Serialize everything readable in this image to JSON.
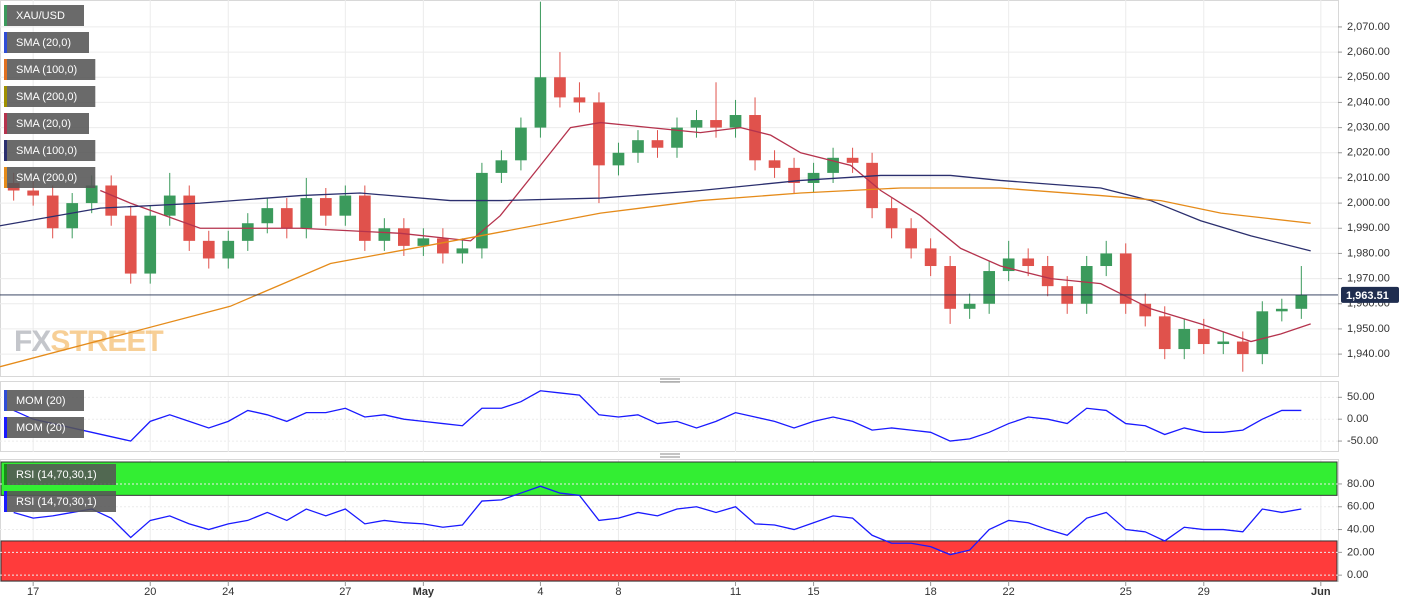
{
  "chart_data": [
    {
      "type": "candlestick",
      "title": "XAU/USD",
      "watermark": [
        "FX",
        "STREET"
      ],
      "up_color": "#3b9a5c",
      "down_color": "#e0524c",
      "xlim": [
        -0.85,
        33.44
      ],
      "xticks": [
        {
          "value": 0,
          "label": "17"
        },
        {
          "value": 3,
          "label": "20"
        },
        {
          "value": 5,
          "label": "24"
        },
        {
          "value": 8,
          "label": "27"
        },
        {
          "value": 10,
          "label": "May"
        },
        {
          "value": 13,
          "label": "4"
        },
        {
          "value": 15,
          "label": "8"
        },
        {
          "value": 18,
          "label": "11"
        },
        {
          "value": 20,
          "label": "15"
        },
        {
          "value": 23,
          "label": "18"
        },
        {
          "value": 25,
          "label": "22"
        },
        {
          "value": 28,
          "label": "25"
        },
        {
          "value": 30,
          "label": "29"
        },
        {
          "value": 33,
          "label": "Jun"
        }
      ],
      "ylim": [
        1931.3,
        2080.7
      ],
      "yticks": [
        {
          "value": 1940,
          "label": "1,940.00"
        },
        {
          "value": 1950,
          "label": "1,950.00"
        },
        {
          "value": 1960,
          "label": "1,960.00"
        },
        {
          "value": 1970,
          "label": "1,970.00"
        },
        {
          "value": 1980,
          "label": "1,980.00"
        },
        {
          "value": 1990,
          "label": "1,990.00"
        },
        {
          "value": 2000,
          "label": "2,000.00"
        },
        {
          "value": 2010,
          "label": "2,010.00"
        },
        {
          "value": 2020,
          "label": "2,020.00"
        },
        {
          "value": 2030,
          "label": "2,030.00"
        },
        {
          "value": 2040,
          "label": "2,040.00"
        },
        {
          "value": 2050,
          "label": "2,050.00"
        },
        {
          "value": 2060,
          "label": "2,060.00"
        },
        {
          "value": 2070,
          "label": "2,070.00"
        }
      ],
      "grid": true,
      "last_price": {
        "value": 1963.51,
        "label": "1,963.51",
        "color": "#1f2d4f"
      },
      "legend": [
        {
          "name": "SMA (20,0)",
          "color": "#2f4dd6"
        },
        {
          "name": "SMA (100,0)",
          "color": "#e07020"
        },
        {
          "name": "SMA (200,0)",
          "color": "#a09000"
        }
      ],
      "x": [
        -0.5,
        0,
        0.5,
        1,
        1.5,
        2,
        2.5,
        3,
        3.5,
        4,
        4.5,
        5,
        5.5,
        6,
        6.5,
        7,
        7.5,
        8,
        8.5,
        9,
        9.5,
        10,
        10.5,
        11,
        11.5,
        12,
        12.5,
        13,
        13.5,
        14,
        14.5,
        15,
        15.5,
        16,
        16.5,
        17,
        17.5,
        18,
        18.5,
        19,
        19.5,
        20,
        20.5,
        21,
        21.5,
        22,
        22.5,
        23,
        23.5,
        24,
        24.5,
        25,
        25.5,
        26,
        26.5,
        27,
        27.5,
        28,
        28.5,
        29,
        29.5,
        30,
        30.5,
        31,
        31.5,
        32,
        32.5
      ],
      "open": [
        2008,
        2005,
        2003,
        1990,
        2000,
        2007,
        1995,
        1972,
        1995,
        2003,
        1985,
        1978,
        1985,
        1992,
        1998,
        1990,
        2002,
        1995,
        2003,
        1985,
        1990,
        1983,
        1986,
        1980,
        1982,
        2012,
        2017,
        2030,
        2050,
        2042,
        2040,
        2015,
        2020,
        2025,
        2022,
        2030,
        2033,
        2030,
        2035,
        2017,
        2014,
        2008,
        2012,
        2018,
        2016,
        1998,
        1990,
        1982,
        1975,
        1958,
        1960,
        1973,
        1978,
        1975,
        1967,
        1960,
        1975,
        1980,
        1960,
        1955,
        1942,
        1950,
        1944,
        1945,
        1940,
        1957,
        1958
      ],
      "high": [
        2012,
        2009,
        2007,
        2004,
        2011,
        2011,
        1999,
        1999,
        2012,
        2007,
        1989,
        1989,
        1996,
        2002,
        2002,
        2010,
        2006,
        2007,
        2007,
        1994,
        1994,
        1990,
        1990,
        1986,
        2016,
        2021,
        2034,
        2080,
        2060,
        2048,
        2044,
        2024,
        2029,
        2029,
        2034,
        2037,
        2048,
        2041,
        2042,
        2021,
        2018,
        2016,
        2022,
        2022,
        2020,
        2002,
        1994,
        1986,
        1979,
        1964,
        1977,
        1985,
        1982,
        1979,
        1971,
        1979,
        1985,
        1984,
        1964,
        1959,
        1954,
        1954,
        1949,
        1949,
        1961,
        1962,
        1975
      ],
      "low": [
        2001,
        1999,
        1986,
        1986,
        1996,
        1991,
        1968,
        1968,
        1991,
        1981,
        1974,
        1974,
        1981,
        1988,
        1986,
        1986,
        1991,
        1991,
        1981,
        1981,
        1979,
        1979,
        1976,
        1976,
        1978,
        2008,
        2013,
        2026,
        2038,
        2036,
        2000,
        2011,
        2016,
        2018,
        2018,
        2026,
        2026,
        2026,
        2013,
        2010,
        2004,
        2004,
        2008,
        2012,
        1994,
        1986,
        1978,
        1971,
        1952,
        1954,
        1956,
        1969,
        1971,
        1963,
        1956,
        1956,
        1971,
        1956,
        1951,
        1938,
        1938,
        1940,
        1940,
        1933,
        1936,
        1953,
        1954
      ],
      "close": [
        2005,
        2003,
        1990,
        2000,
        2007,
        1995,
        1972,
        1995,
        2003,
        1985,
        1978,
        1985,
        1992,
        1998,
        1990,
        2002,
        1995,
        2003,
        1985,
        1990,
        1983,
        1986,
        1980,
        1982,
        2012,
        2017,
        2030,
        2050,
        2042,
        2040,
        2015,
        2020,
        2025,
        2022,
        2030,
        2033,
        2030,
        2035,
        2017,
        2014,
        2008,
        2012,
        2018,
        2016,
        1998,
        1990,
        1982,
        1975,
        1958,
        1960,
        1973,
        1978,
        1975,
        1967,
        1960,
        1975,
        1980,
        1960,
        1955,
        1942,
        1950,
        1944,
        1945,
        1940,
        1957,
        1958,
        1963.51
      ],
      "series": [
        {
          "name": "SMA (20,0)",
          "color": "#b5334d",
          "x": [
            1.72,
            2.49,
            4.28,
            6.85,
            9.41,
            11.21,
            11.97,
            13.0,
            13.77,
            14.54,
            15.82,
            17.1,
            18.13,
            18.9,
            19.67,
            20.95,
            21.72,
            22.74,
            23.77,
            24.79,
            26.08,
            27.36,
            28.64,
            29.92,
            31.21,
            31.97,
            32.74
          ],
          "values": [
            2005,
            2000,
            1990,
            1990,
            1988,
            1985,
            1995,
            2015,
            2030,
            2032,
            2030,
            2028,
            2030,
            2027,
            2020,
            2015,
            2005,
            1995,
            1982,
            1975,
            1970,
            1968,
            1958,
            1952,
            1945,
            1948,
            1952
          ]
        },
        {
          "name": "SMA (100,0)",
          "color": "#2b2f6e",
          "x": [
            -0.85,
            1.72,
            4.28,
            6.85,
            8.38,
            10.69,
            11.97,
            14.54,
            17.1,
            19.67,
            21.72,
            23.51,
            24.79,
            27.36,
            28.64,
            29.92,
            31.21,
            32.74
          ],
          "values": [
            1991,
            1998,
            2000,
            2003,
            2004,
            2001,
            2001,
            2002,
            2005,
            2009,
            2011,
            2011,
            2009,
            2006,
            2001,
            1993,
            1987,
            1981
          ]
        },
        {
          "name": "SMA (200,0)",
          "color": "#e58b1a",
          "x": [
            -0.85,
            5.05,
            7.62,
            11.46,
            14.54,
            17.1,
            19.67,
            22.23,
            24.79,
            27.36,
            28.9,
            30.44,
            32.74
          ],
          "values": [
            1935,
            1959,
            1976,
            1987,
            1996,
            2001,
            2004,
            2006,
            2006,
            2003,
            2001,
            1996,
            1992
          ]
        }
      ]
    },
    {
      "type": "line",
      "ylim": [
        -75,
        85
      ],
      "yticks": [
        {
          "value": 50,
          "label": "50.00"
        },
        {
          "value": 0,
          "label": "0.00"
        },
        {
          "value": -50,
          "label": "-50.00"
        }
      ],
      "legend": [
        {
          "name": "MOM (20)",
          "color": "#2f4dd6"
        }
      ],
      "series": [
        {
          "name": "MOM (20)",
          "color": "#1a1aff",
          "values": [
            20,
            0,
            -10,
            -20,
            -30,
            -40,
            -50,
            -5,
            10,
            -5,
            -20,
            -5,
            20,
            10,
            -5,
            15,
            15,
            25,
            5,
            10,
            0,
            -5,
            -10,
            -15,
            25,
            25,
            40,
            65,
            60,
            55,
            10,
            5,
            10,
            -10,
            -5,
            -20,
            -5,
            15,
            5,
            -5,
            -20,
            -5,
            5,
            -5,
            -25,
            -20,
            -25,
            -30,
            -50,
            -45,
            -30,
            -10,
            5,
            0,
            -10,
            25,
            20,
            -10,
            -15,
            -35,
            -20,
            -30,
            -30,
            -25,
            0,
            20,
            20
          ]
        }
      ]
    },
    {
      "type": "line",
      "ylim": [
        -6,
        101
      ],
      "yticks": [
        {
          "value": 0,
          "label": "0.00"
        },
        {
          "value": 20,
          "label": "20.00"
        },
        {
          "value": 40,
          "label": "40.00"
        },
        {
          "value": 60,
          "label": "60.00"
        },
        {
          "value": 80,
          "label": "80.00"
        }
      ],
      "overbought": 70,
      "oversold": 30,
      "overbought_color": "#33ee33",
      "oversold_color": "#ff3b3b",
      "legend": [
        {
          "name": "RSI (14,70,30,1)",
          "color": "#1a8a1a"
        }
      ],
      "series": [
        {
          "name": "RSI (14,70,30,1)",
          "color": "#1a1aff",
          "values": [
            55,
            50,
            52,
            55,
            58,
            50,
            33,
            48,
            52,
            45,
            40,
            45,
            48,
            55,
            48,
            58,
            52,
            58,
            45,
            48,
            46,
            45,
            42,
            44,
            65,
            66,
            72,
            78,
            72,
            70,
            48,
            50,
            55,
            52,
            58,
            60,
            55,
            60,
            45,
            44,
            40,
            46,
            52,
            50,
            35,
            28,
            28,
            25,
            18,
            22,
            40,
            48,
            46,
            40,
            35,
            50,
            55,
            40,
            38,
            30,
            42,
            40,
            40,
            38,
            58,
            55,
            58
          ]
        }
      ]
    }
  ]
}
